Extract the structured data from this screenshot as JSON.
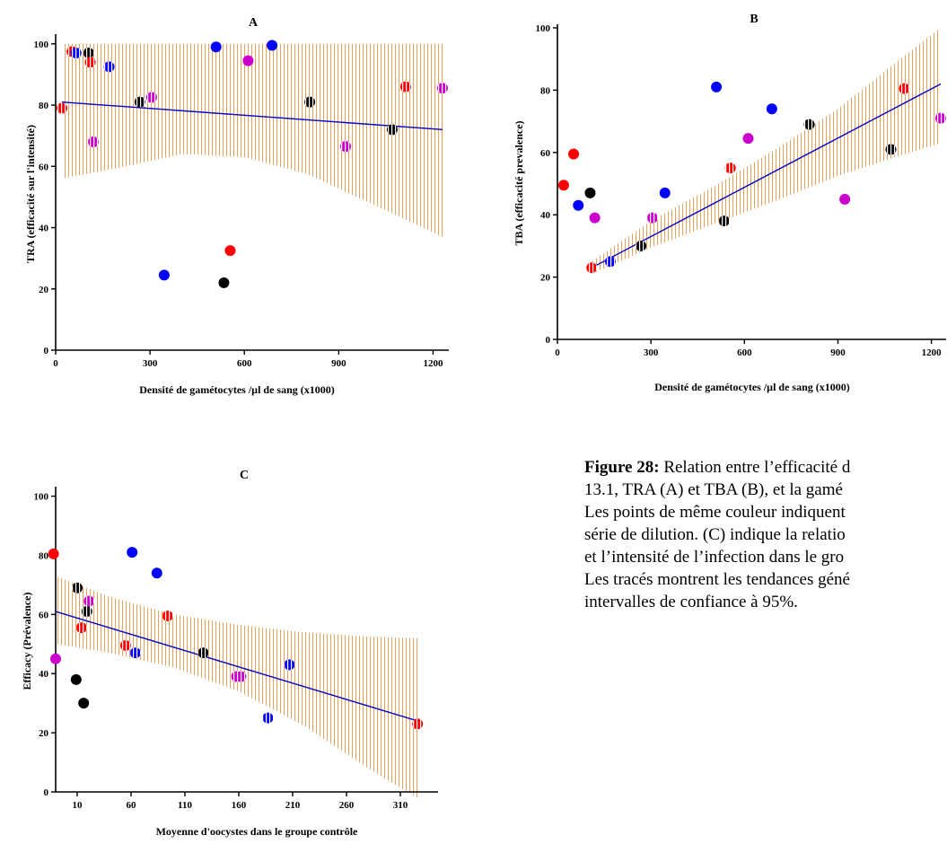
{
  "colors": {
    "red": "#ff0000",
    "black": "#000000",
    "blue": "#0000ff",
    "magenta": "#cc00cc",
    "trend": "#0000cc",
    "band": "#e8a060"
  },
  "chart_data": [
    {
      "type": "scatter",
      "panel": "A",
      "xlabel": "Densité de gamétocytes /µl de sang (x1000)",
      "ylabel": "TRA (efficacité sur l'intensité)",
      "xlim": [
        0,
        1250
      ],
      "ylim": [
        0,
        102
      ],
      "xticks": [
        0,
        300,
        600,
        900,
        1200
      ],
      "yticks": [
        0,
        20,
        40,
        60,
        80,
        100
      ],
      "points": [
        {
          "x": 20,
          "y": 79,
          "color": "red",
          "pattern": "striped"
        },
        {
          "x": 52,
          "y": 97.5,
          "color": "red",
          "pattern": "striped"
        },
        {
          "x": 65,
          "y": 97,
          "color": "blue",
          "pattern": "striped"
        },
        {
          "x": 105,
          "y": 97,
          "color": "black",
          "pattern": "striped"
        },
        {
          "x": 110,
          "y": 94,
          "color": "red",
          "pattern": "striped"
        },
        {
          "x": 120,
          "y": 68,
          "color": "magenta",
          "pattern": "striped"
        },
        {
          "x": 170,
          "y": 92.5,
          "color": "blue",
          "pattern": "striped"
        },
        {
          "x": 268,
          "y": 81,
          "color": "black",
          "pattern": "striped"
        },
        {
          "x": 305,
          "y": 82.5,
          "color": "magenta",
          "pattern": "striped"
        },
        {
          "x": 345,
          "y": 24.5,
          "color": "blue",
          "pattern": "solid"
        },
        {
          "x": 510,
          "y": 99,
          "color": "blue",
          "pattern": "solid"
        },
        {
          "x": 535,
          "y": 22,
          "color": "black",
          "pattern": "solid"
        },
        {
          "x": 555,
          "y": 32.5,
          "color": "red",
          "pattern": "solid"
        },
        {
          "x": 612,
          "y": 94.5,
          "color": "magenta",
          "pattern": "solid"
        },
        {
          "x": 688,
          "y": 99.5,
          "color": "blue",
          "pattern": "solid"
        },
        {
          "x": 808,
          "y": 81,
          "color": "black",
          "pattern": "striped"
        },
        {
          "x": 922,
          "y": 66.5,
          "color": "magenta",
          "pattern": "striped"
        },
        {
          "x": 1070,
          "y": 72,
          "color": "black",
          "pattern": "striped"
        },
        {
          "x": 1113,
          "y": 86,
          "color": "red",
          "pattern": "striped"
        },
        {
          "x": 1230,
          "y": 85.5,
          "color": "magenta",
          "pattern": "striped"
        }
      ],
      "trend": {
        "x": [
          20,
          1230
        ],
        "y": [
          81,
          72
        ]
      },
      "ci_upper": [
        [
          20,
          100
        ],
        [
          200,
          100
        ],
        [
          400,
          100
        ],
        [
          600,
          100
        ],
        [
          800,
          100
        ],
        [
          1000,
          100
        ],
        [
          1230,
          100
        ]
      ],
      "ci_lower": [
        [
          20,
          56
        ],
        [
          200,
          59.5
        ],
        [
          400,
          64
        ],
        [
          600,
          63
        ],
        [
          800,
          57.5
        ],
        [
          1000,
          48
        ],
        [
          1230,
          37
        ]
      ]
    },
    {
      "type": "scatter",
      "panel": "B",
      "xlabel": "Densité de gamétocytes /µl de sang (x1000)",
      "ylabel": "TBA (efficacité prevalence)",
      "xlim": [
        0,
        1250
      ],
      "ylim": [
        0,
        100
      ],
      "xticks": [
        0,
        300,
        600,
        900,
        1200
      ],
      "yticks": [
        0,
        20,
        40,
        60,
        80,
        100
      ],
      "points": [
        {
          "x": 20,
          "y": 49.5,
          "color": "red",
          "pattern": "solid"
        },
        {
          "x": 52,
          "y": 59.5,
          "color": "red",
          "pattern": "solid"
        },
        {
          "x": 67,
          "y": 43,
          "color": "blue",
          "pattern": "solid"
        },
        {
          "x": 105,
          "y": 47,
          "color": "black",
          "pattern": "solid"
        },
        {
          "x": 110,
          "y": 23,
          "color": "red",
          "pattern": "striped"
        },
        {
          "x": 120,
          "y": 39,
          "color": "magenta",
          "pattern": "solid"
        },
        {
          "x": 170,
          "y": 25,
          "color": "blue",
          "pattern": "striped"
        },
        {
          "x": 268,
          "y": 30,
          "color": "black",
          "pattern": "striped"
        },
        {
          "x": 305,
          "y": 39,
          "color": "magenta",
          "pattern": "striped"
        },
        {
          "x": 345,
          "y": 47,
          "color": "blue",
          "pattern": "solid"
        },
        {
          "x": 510,
          "y": 81,
          "color": "blue",
          "pattern": "solid"
        },
        {
          "x": 535,
          "y": 38,
          "color": "black",
          "pattern": "striped"
        },
        {
          "x": 555,
          "y": 55,
          "color": "red",
          "pattern": "striped"
        },
        {
          "x": 612,
          "y": 64.5,
          "color": "magenta",
          "pattern": "solid"
        },
        {
          "x": 688,
          "y": 74,
          "color": "blue",
          "pattern": "solid"
        },
        {
          "x": 808,
          "y": 69,
          "color": "black",
          "pattern": "striped"
        },
        {
          "x": 922,
          "y": 45,
          "color": "magenta",
          "pattern": "solid"
        },
        {
          "x": 1070,
          "y": 61,
          "color": "black",
          "pattern": "striped"
        },
        {
          "x": 1113,
          "y": 80.5,
          "color": "red",
          "pattern": "striped"
        },
        {
          "x": 1230,
          "y": 71,
          "color": "magenta",
          "pattern": "striped"
        }
      ],
      "trend": {
        "x": [
          110,
          1230
        ],
        "y": [
          23,
          82
        ]
      },
      "ci_upper": [
        [
          110,
          25
        ],
        [
          300,
          38
        ],
        [
          500,
          49
        ],
        [
          700,
          61
        ],
        [
          900,
          74
        ],
        [
          1100,
          90
        ],
        [
          1230,
          101
        ]
      ],
      "ci_lower": [
        [
          110,
          21
        ],
        [
          300,
          29.5
        ],
        [
          500,
          37
        ],
        [
          700,
          44.5
        ],
        [
          900,
          52.5
        ],
        [
          1100,
          59
        ],
        [
          1230,
          63
        ]
      ]
    },
    {
      "type": "scatter",
      "panel": "C",
      "xlabel": "Moyenne d'oocystes dans le groupe contrôle",
      "ylabel": "Efficacy (Prévalence)",
      "xlim": [
        -10,
        345
      ],
      "ylim": [
        0,
        102
      ],
      "xticks": [
        10,
        60,
        110,
        160,
        210,
        260,
        310
      ],
      "yticks": [
        0,
        20,
        40,
        60,
        80,
        100
      ],
      "points": [
        {
          "x": -12,
          "y": 80.5,
          "color": "red",
          "pattern": "solid"
        },
        {
          "x": -10,
          "y": 45,
          "color": "magenta",
          "pattern": "solid"
        },
        {
          "x": 9,
          "y": 38,
          "color": "black",
          "pattern": "solid"
        },
        {
          "x": 10,
          "y": 69,
          "color": "black",
          "pattern": "striped"
        },
        {
          "x": 14,
          "y": 55.5,
          "color": "red",
          "pattern": "striped"
        },
        {
          "x": 16,
          "y": 30,
          "color": "black",
          "pattern": "solid"
        },
        {
          "x": 19,
          "y": 61,
          "color": "black",
          "pattern": "striped"
        },
        {
          "x": 21,
          "y": 64.5,
          "color": "magenta",
          "pattern": "striped"
        },
        {
          "x": 55,
          "y": 49.5,
          "color": "red",
          "pattern": "striped"
        },
        {
          "x": 61,
          "y": 81,
          "color": "blue",
          "pattern": "solid"
        },
        {
          "x": 64,
          "y": 47,
          "color": "blue",
          "pattern": "striped"
        },
        {
          "x": 84,
          "y": 74,
          "color": "blue",
          "pattern": "solid"
        },
        {
          "x": 94,
          "y": 59.5,
          "color": "red",
          "pattern": "striped"
        },
        {
          "x": 127,
          "y": 47,
          "color": "black",
          "pattern": "striped"
        },
        {
          "x": 158,
          "y": 39,
          "color": "magenta",
          "pattern": "striped"
        },
        {
          "x": 162,
          "y": 39,
          "color": "magenta",
          "pattern": "striped"
        },
        {
          "x": 187,
          "y": 25,
          "color": "blue",
          "pattern": "striped"
        },
        {
          "x": 207,
          "y": 43,
          "color": "blue",
          "pattern": "striped"
        },
        {
          "x": 326,
          "y": 23,
          "color": "red",
          "pattern": "striped"
        }
      ],
      "trend": {
        "x": [
          -10,
          326
        ],
        "y": [
          61,
          24
        ]
      },
      "ci_upper": [
        [
          -10,
          73
        ],
        [
          40,
          66
        ],
        [
          100,
          60
        ],
        [
          160,
          56.5
        ],
        [
          220,
          54
        ],
        [
          280,
          52.5
        ],
        [
          326,
          52
        ]
      ],
      "ci_lower": [
        [
          -10,
          50
        ],
        [
          40,
          47
        ],
        [
          100,
          42
        ],
        [
          160,
          34
        ],
        [
          220,
          22.5
        ],
        [
          280,
          8
        ],
        [
          326,
          -2
        ]
      ]
    }
  ],
  "caption": {
    "label": "Figure 28:",
    "line1": " Relation entre l’efficacité d",
    "line2": "13.1, TRA (A) et TBA (B), et la gamé",
    "line3": "Les points de même couleur indiquent",
    "line4": "série de dilution. (C) indique la relatio",
    "line5": "et l’intensité de l’infection dans le gro",
    "line6": "Les tracés montrent les tendances géné",
    "line7": "intervalles de confiance à 95%."
  }
}
